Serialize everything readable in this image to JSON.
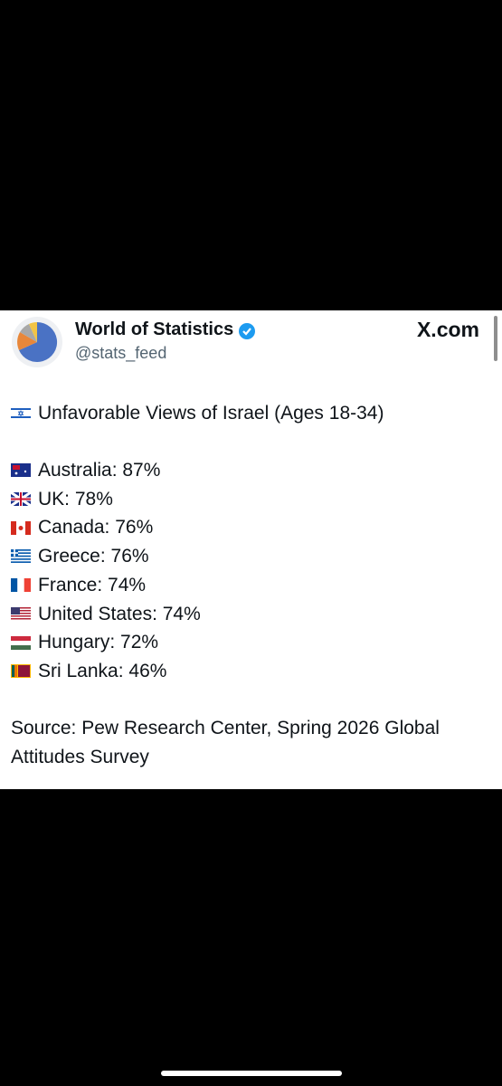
{
  "header": {
    "name": "World of Statistics",
    "handle": "@stats_feed",
    "site": "X.com"
  },
  "post": {
    "title": "Unfavorable Views of Israel (Ages 18-34)",
    "items": [
      "Australia: 87%",
      "UK: 78%",
      "Canada: 76%",
      "Greece: 76%",
      "France: 74%",
      "United States: 74%",
      "Hungary: 72%",
      "Sri Lanka: 46%"
    ],
    "source": "Source: Pew Research Center, Spring 2026 Global Attitudes Survey"
  }
}
